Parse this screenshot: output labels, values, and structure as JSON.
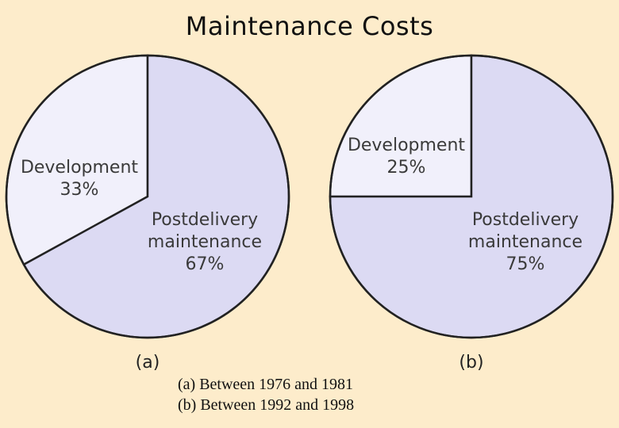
{
  "title": "Maintenance Costs",
  "chart_data": [
    {
      "type": "pie",
      "panel": "(a)",
      "slices": [
        {
          "name": "Development",
          "label_lines": [
            "Development",
            "33%"
          ],
          "value": 33,
          "color": "#f1f0fb"
        },
        {
          "name": "Postdelivery maintenance",
          "label_lines": [
            "Postdelivery",
            "maintenance",
            "67%"
          ],
          "value": 67,
          "color": "#dcdaf3"
        }
      ]
    },
    {
      "type": "pie",
      "panel": "(b)",
      "slices": [
        {
          "name": "Development",
          "label_lines": [
            "Development",
            "25%"
          ],
          "value": 25,
          "color": "#f1f0fb"
        },
        {
          "name": "Postdelivery maintenance",
          "label_lines": [
            "Postdelivery",
            "maintenance",
            "75%"
          ],
          "value": 75,
          "color": "#dcdaf3"
        }
      ]
    }
  ],
  "caption": {
    "line1": "(a) Between 1976 and 1981",
    "line2": "(b) Between 1992 and 1998"
  }
}
